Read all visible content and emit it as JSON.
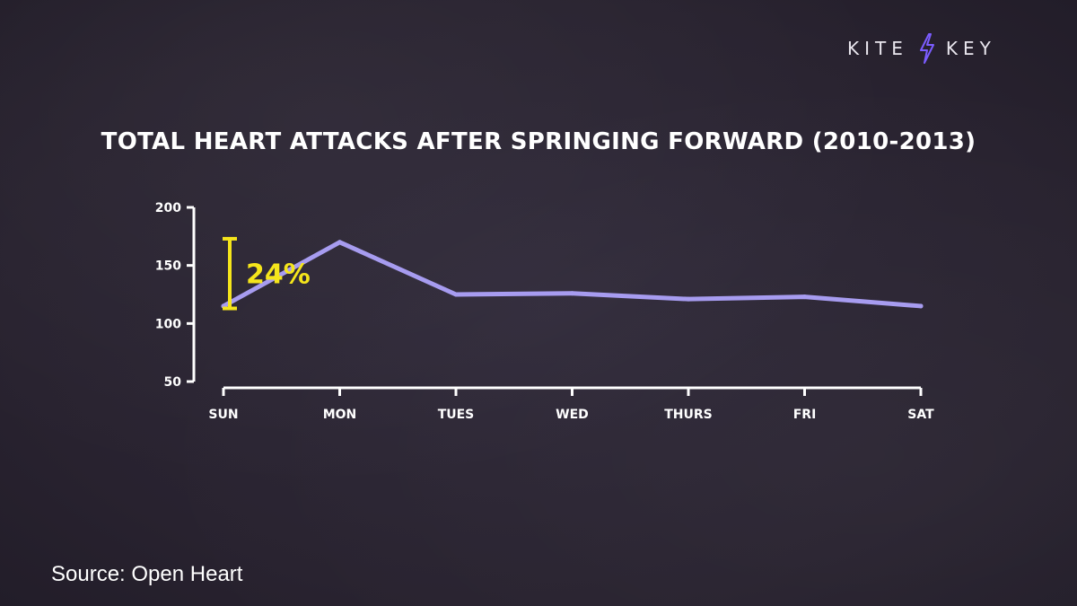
{
  "brand": {
    "word1": "KITE",
    "word2": "KEY"
  },
  "source": "Source: Open Heart",
  "colors": {
    "background": "#2b2535",
    "line": "#a79cf0",
    "axis": "#ffffff",
    "annotation": "#f5e51b"
  },
  "chart_data": {
    "type": "line",
    "title": "TOTAL HEART ATTACKS AFTER SPRINGING FORWARD (2010-2013)",
    "xlabel": "",
    "ylabel": "",
    "categories": [
      "SUN",
      "MON",
      "TUES",
      "WED",
      "THURS",
      "FRI",
      "SAT"
    ],
    "series": [
      {
        "values": [
          115,
          170,
          125,
          126,
          121,
          123,
          115
        ]
      }
    ],
    "ylim": [
      50,
      200
    ],
    "yticks": [
      50,
      100,
      150,
      200
    ],
    "grid": false,
    "legend": "none",
    "annotation": {
      "text": "24%",
      "from": 113,
      "to": 173,
      "category": "SUN"
    }
  }
}
